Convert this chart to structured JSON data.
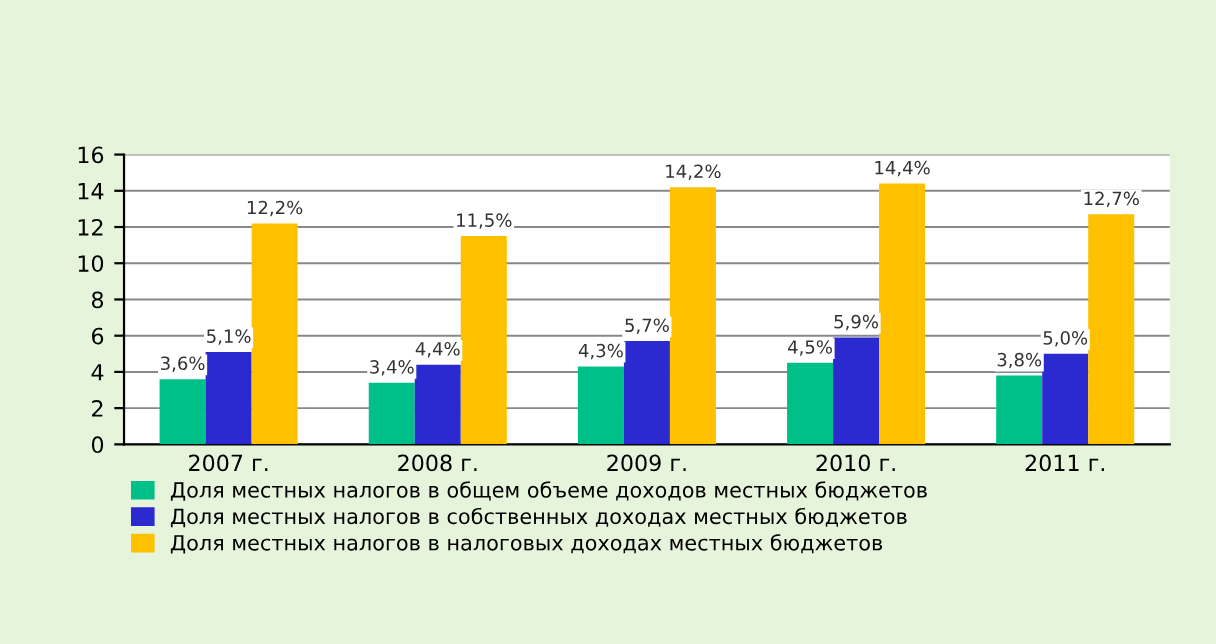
{
  "chart_data": {
    "type": "bar",
    "categories": [
      "2007 г.",
      "2008 г.",
      "2009 г.",
      "2010 г.",
      "2011 г."
    ],
    "series": [
      {
        "name": "Доля местных налогов в общем объеме доходов местных бюджетов",
        "color": "#00c08a",
        "values": [
          3.6,
          3.4,
          4.3,
          4.5,
          3.8
        ],
        "value_labels": [
          "3,6%",
          "3,4%",
          "4,3%",
          "4,5%",
          "3,8%"
        ]
      },
      {
        "name": "Доля местных налогов в собственных доходах местных бюджетов",
        "color": "#2a2ad0",
        "values": [
          5.1,
          4.4,
          5.7,
          5.9,
          5.0
        ],
        "value_labels": [
          "5,1%",
          "4,4%",
          "5,7%",
          "5,9%",
          "5,0%"
        ]
      },
      {
        "name": "Доля местных налогов в налоговых доходах местных бюджетов",
        "color": "#ffc000",
        "values": [
          12.2,
          11.5,
          14.2,
          14.4,
          12.7
        ],
        "value_labels": [
          "12,2%",
          "11,5%",
          "14,2%",
          "14,4%",
          "12,7%"
        ]
      }
    ],
    "ylim": [
      0,
      16
    ],
    "yticks": [
      0,
      2,
      4,
      6,
      8,
      10,
      12,
      14,
      16
    ],
    "grid": "y",
    "legend": "bottom"
  }
}
